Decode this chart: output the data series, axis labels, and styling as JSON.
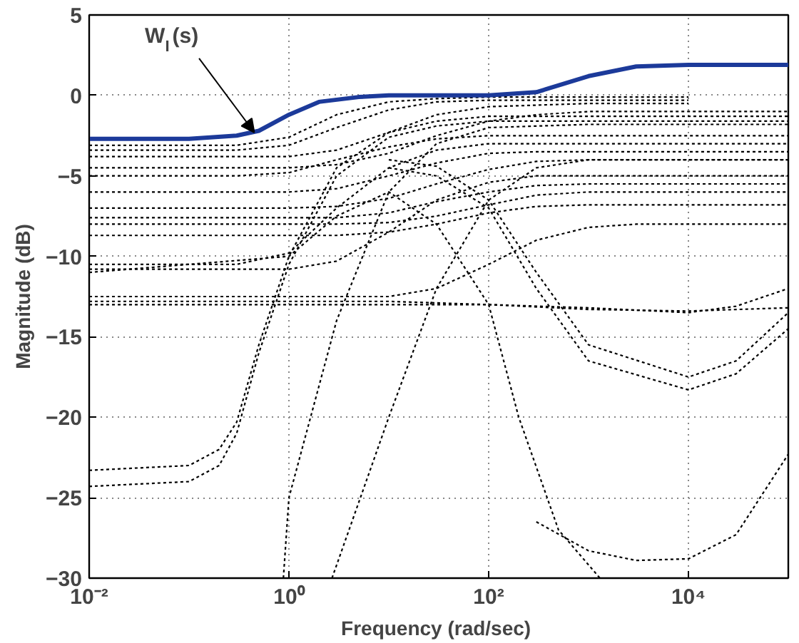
{
  "chart_data": {
    "type": "line",
    "xlabel": "Frequency  (rad/sec)",
    "ylabel": "Magnitude (dB)",
    "log": "x",
    "grid": true,
    "line_style": "dotted",
    "xlim": [
      0.01,
      100000
    ],
    "ylim": [
      -30,
      5
    ],
    "xticks": [
      {
        "value": 0.01,
        "label": "10⁻²"
      },
      {
        "value": 1,
        "label": "10⁰"
      },
      {
        "value": 100,
        "label": "10²"
      },
      {
        "value": 10000,
        "label": "10⁴"
      }
    ],
    "yticks": [
      -30,
      -25,
      -20,
      -15,
      -10,
      -5,
      0,
      5
    ],
    "annotations": [
      {
        "text": "W$_{I}$(s)",
        "x": 0.45,
        "y": -2.3
      }
    ],
    "series": [
      {
        "color": "#000000",
        "x": [
          0.01,
          0.3,
          1,
          3,
          10,
          30,
          100,
          1000,
          10000
        ],
        "values": [
          -3.1,
          -3.1,
          -2.6,
          -1.2,
          -0.4,
          -0.2,
          -0.1,
          -0.1,
          -0.1
        ]
      },
      {
        "color": "#000000",
        "x": [
          0.01,
          0.3,
          1,
          3,
          10,
          30,
          100,
          1000,
          10000
        ],
        "values": [
          -3.4,
          -3.4,
          -3.1,
          -2,
          -0.9,
          -0.4,
          -0.3,
          -0.3,
          -0.3
        ]
      },
      {
        "color": "#000000",
        "x": [
          0.01,
          1,
          3,
          10,
          30,
          100,
          1000,
          10000
        ],
        "values": [
          -3.8,
          -3.8,
          -3.4,
          -2.3,
          -1.2,
          -0.7,
          -0.5,
          -0.5
        ]
      },
      {
        "color": "#000000",
        "x": [
          0.01,
          1,
          3,
          10,
          30,
          100,
          300,
          1000,
          100000
        ],
        "values": [
          -4.5,
          -4.5,
          -4.3,
          -3.6,
          -2.5,
          -1.6,
          -1.2,
          -1,
          -1
        ]
      },
      {
        "color": "#000000",
        "x": [
          0.01,
          0.3,
          1,
          3,
          10,
          30,
          100,
          100000
        ],
        "values": [
          -5,
          -5,
          -4.8,
          -4,
          -3.2,
          -2.7,
          -2.5,
          -2.5
        ]
      },
      {
        "color": "#000000",
        "x": [
          0.01,
          1,
          3,
          10,
          30,
          100,
          300,
          100000
        ],
        "values": [
          -6,
          -6,
          -5.8,
          -5,
          -4.2,
          -3.6,
          -3.5,
          -3.5
        ]
      },
      {
        "color": "#000000",
        "x": [
          0.01,
          1,
          3,
          10,
          30,
          100,
          300,
          1000,
          100000
        ],
        "values": [
          -7,
          -7,
          -6.9,
          -6.4,
          -5.5,
          -4.6,
          -4.1,
          -4,
          -4
        ]
      },
      {
        "color": "#000000",
        "x": [
          0.01,
          3,
          10,
          30,
          100,
          300,
          1000,
          100000
        ],
        "values": [
          -7.6,
          -7.6,
          -7.3,
          -6.6,
          -6,
          -5.6,
          -5.5,
          -5.5
        ]
      },
      {
        "color": "#000000",
        "x": [
          0.01,
          3,
          10,
          30,
          100,
          300,
          1000,
          100000
        ],
        "values": [
          -8,
          -8,
          -7.9,
          -7.5,
          -6.8,
          -6.2,
          -6,
          -6
        ]
      },
      {
        "color": "#000000",
        "x": [
          0.01,
          3,
          10,
          30,
          100,
          300,
          1000,
          100000
        ],
        "values": [
          -8.7,
          -8.7,
          -8.5,
          -8,
          -7.3,
          -6.9,
          -6.8,
          -6.8
        ]
      },
      {
        "color": "#000000",
        "x": [
          0.01,
          0.3,
          1,
          3,
          10,
          30,
          100,
          100000
        ],
        "values": [
          -10.5,
          -10.5,
          -9.8,
          -7,
          -4.5,
          -3.4,
          -3,
          -3
        ]
      },
      {
        "color": "#000000",
        "x": [
          0.01,
          1,
          3,
          10,
          30,
          100,
          300,
          1000,
          100000
        ],
        "values": [
          -10.8,
          -10.8,
          -10.3,
          -8.5,
          -6.5,
          -5.4,
          -5,
          -5,
          -5
        ]
      },
      {
        "color": "#000000",
        "x": [
          0.01,
          10,
          30,
          100,
          300,
          1000,
          3000,
          100000
        ],
        "values": [
          -12.5,
          -12.5,
          -12,
          -10.5,
          -9,
          -8.2,
          -8,
          -8
        ]
      },
      {
        "color": "#000000",
        "x": [
          0.01,
          10,
          100,
          1000,
          10000,
          30000,
          100000
        ],
        "values": [
          -13,
          -13,
          -13,
          -13.2,
          -13.5,
          -13.1,
          -12
        ]
      },
      {
        "color": "#000000",
        "x": [
          0.01,
          10,
          100,
          1000,
          10000,
          100000
        ],
        "values": [
          -12.8,
          -12.8,
          -13,
          -13.3,
          -13.4,
          -13.2
        ]
      },
      {
        "color": "#000000",
        "x": [
          0.01,
          0.1,
          0.2,
          0.3,
          0.5,
          1,
          3,
          10,
          30,
          100,
          100000
        ],
        "values": [
          -23.3,
          -23,
          -22,
          -20.3,
          -15.5,
          -10,
          -4.5,
          -2.3,
          -1.6,
          -1.3,
          -1.3
        ]
      },
      {
        "color": "#000000",
        "x": [
          0.01,
          0.1,
          0.2,
          0.3,
          0.5,
          1,
          3,
          10,
          30,
          100,
          100000
        ],
        "values": [
          -24.3,
          -24,
          -23,
          -21,
          -16,
          -10.5,
          -5,
          -2.6,
          -1.9,
          -1.6,
          -1.6
        ]
      },
      {
        "color": "#000000",
        "x": [
          0.88,
          1,
          3,
          10,
          30,
          100,
          1000,
          100000
        ],
        "values": [
          -30,
          -25,
          -14,
          -6,
          -3,
          -2,
          -1.8,
          -1.8
        ]
      },
      {
        "color": "#000000",
        "x": [
          2.7,
          10,
          30,
          100,
          300,
          1000,
          100000
        ],
        "values": [
          -30,
          -20,
          -12,
          -6.5,
          -4.5,
          -4,
          -4
        ]
      },
      {
        "color": "#000000",
        "x": [
          0.01,
          1,
          3,
          10,
          30,
          100,
          200,
          500,
          1300
        ],
        "values": [
          -11,
          -10,
          -7.5,
          -6,
          -8,
          -13,
          -20,
          -27,
          -30
        ]
      },
      {
        "color": "#000000",
        "x": [
          300,
          1000,
          3000,
          10000,
          30000,
          100000
        ],
        "values": [
          -26.5,
          -28.3,
          -28.9,
          -28.8,
          -27.3,
          -22.3
        ]
      },
      {
        "color": "#000000",
        "x": [
          10,
          30,
          100,
          300,
          1000,
          10000,
          30000,
          100000
        ],
        "values": [
          -4.5,
          -5,
          -7,
          -12,
          -16.5,
          -18.3,
          -17.3,
          -14.5
        ]
      },
      {
        "color": "#000000",
        "x": [
          10,
          30,
          100,
          300,
          1000,
          10000,
          30000,
          100000
        ],
        "values": [
          -4,
          -4.4,
          -6.5,
          -11,
          -15.5,
          -17.5,
          -16.5,
          -13.5
        ]
      },
      {
        "color": "#1c3a9a",
        "line_style": "solid",
        "x": [
          0.01,
          0.1,
          0.3,
          0.5,
          1,
          2,
          5,
          10,
          100,
          300,
          1000,
          3000,
          10000,
          100000
        ],
        "values": [
          -2.7,
          -2.7,
          -2.5,
          -2.2,
          -1.2,
          -0.4,
          -0.1,
          0,
          0,
          0.2,
          1.2,
          1.8,
          1.9,
          1.9
        ]
      }
    ]
  }
}
